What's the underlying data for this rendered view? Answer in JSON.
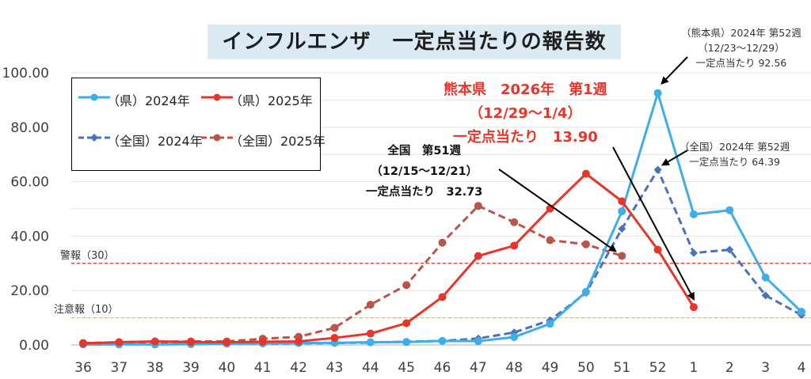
{
  "chart_data": {
    "type": "line",
    "title": "インフルエンザ　一定点当たりの報告数",
    "categories": [
      "36",
      "37",
      "38",
      "39",
      "40",
      "41",
      "42",
      "43",
      "44",
      "45",
      "46",
      "47",
      "48",
      "49",
      "50",
      "51",
      "52",
      "1",
      "2",
      "3",
      "4"
    ],
    "ylim": [
      0,
      100
    ],
    "yticks": [
      "0.00",
      "20.00",
      "40.00",
      "60.00",
      "80.00",
      "100.00"
    ],
    "grid": true,
    "series": [
      {
        "name": "（県）2024年",
        "color": "#3daee9",
        "style": "solid",
        "marker": "circle",
        "values": [
          0.2,
          0.2,
          0.2,
          0.3,
          0.5,
          0.6,
          0.7,
          0.8,
          1.0,
          1.1,
          1.5,
          1.4,
          2.9,
          7.8,
          19.5,
          49.1,
          92.56,
          48.0,
          49.5,
          24.8,
          12.2
        ]
      },
      {
        "name": "（県）2025年",
        "color": "#e8352a",
        "style": "solid",
        "marker": "circle",
        "values": [
          0.6,
          1.0,
          1.3,
          1.1,
          1.0,
          1.2,
          1.3,
          2.6,
          4.2,
          8.0,
          17.6,
          32.7,
          36.5,
          50.1,
          62.9,
          52.8,
          35.0,
          13.9,
          null,
          null,
          null
        ]
      },
      {
        "name": "（全国）2024年",
        "color": "#4e72b8",
        "style": "dashed",
        "marker": "diamond",
        "values": [
          0.2,
          0.3,
          0.4,
          0.4,
          0.5,
          0.5,
          0.6,
          0.7,
          0.9,
          1.2,
          1.5,
          2.4,
          4.6,
          9.1,
          19.1,
          42.7,
          64.39,
          33.8,
          35.0,
          18.2,
          11.0
        ]
      },
      {
        "name": "（全国）2025年",
        "color": "#b9554a",
        "style": "dashed",
        "marker": "circle",
        "values": [
          0.7,
          1.0,
          1.2,
          1.3,
          1.3,
          2.3,
          3.0,
          6.3,
          14.8,
          22.0,
          37.6,
          51.1,
          45.1,
          38.5,
          37.0,
          32.73,
          null,
          null,
          null,
          null,
          null
        ]
      }
    ],
    "reference_lines": [
      {
        "label": "警報（30）",
        "value": 30,
        "color": "#e8352a"
      },
      {
        "label": "注意報（10）",
        "value": 10,
        "color": "#f0c23a"
      }
    ],
    "annotations": {
      "kumamoto_2024_w52": [
        "（熊本県）2024年 第52週",
        "（12/23～12/29）",
        "一定点当たり 92.56"
      ],
      "national_2024_w52": [
        "（全国）2024年 第52週",
        "一定点当たり 64.39"
      ],
      "national_w51": [
        "全国　第51週",
        "（12/15～12/21）",
        "一定点当たり　32.73"
      ],
      "kumamoto_2026_w1": [
        "熊本県　2026年　第1週",
        "（12/29～1/4）",
        "一定点当たり　13.90"
      ]
    }
  }
}
